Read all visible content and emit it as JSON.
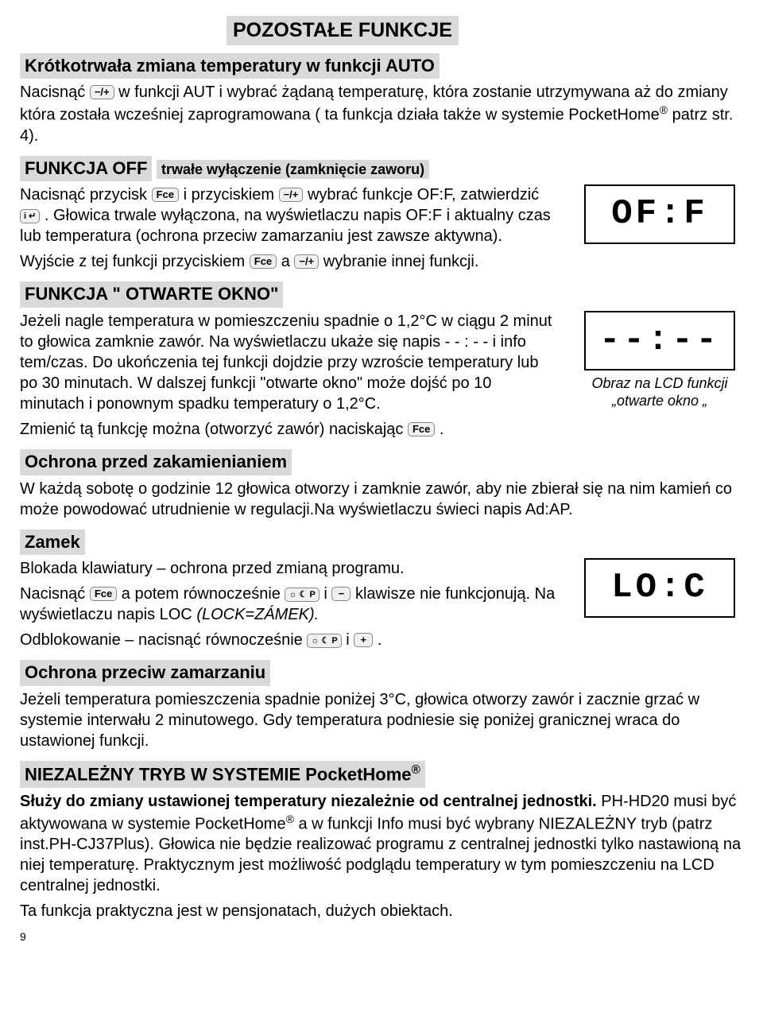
{
  "title": "POZOSTAŁE FUNKCJE",
  "sections": {
    "auto": {
      "heading": "Krótkotrwała zmiana temperatury w funkcji AUTO",
      "body_1a": "Nacisnąć ",
      "body_1b": " w funkcji AUT i wybrać żądaną temperaturę, która zostanie utrzymywana aż do zmiany która została wcześniej zaprogramowana ( ta funkcja działa także w systemie PocketHome",
      "body_1c": " patrz str. 4)."
    },
    "off": {
      "heading": "FUNKCJA OFF",
      "subheading": "trwałe wyłączenie (zamknięcie zaworu)",
      "p1a": "Nacisnąć przycisk ",
      "p1b": " i przyciskiem ",
      "p1c": " wybrać funkcje OF:F, zatwierdzić ",
      "p1d": ". Głowica  trwale wyłączona, na wyświetlaczu napis OF:F i aktualny czas lub temperatura (ochrona przeciw zamarzaniu jest zawsze aktywna).",
      "p2a": "Wyjście z tej funkcji przyciskiem ",
      "p2b": " a ",
      "p2c": " wybranie innej funkcji.",
      "lcd": "OF:F"
    },
    "openwindow": {
      "heading": "FUNKCJA \" OTWARTE OKNO\"",
      "p1": "Jeżeli nagle temperatura w pomieszczeniu spadnie o 1,2°C w ciągu 2 minut to głowica zamknie zawór. Na wyświetlaczu ukaże się napis  - - : - - i info tem/czas. Do ukończenia tej funkcji dojdzie przy wzroście temperatury lub po 30 minutach. W dalszej funkcji  \"otwarte okno\" może dojść po 10 minutach i ponownym spadku temperatury o 1,2°C.",
      "p2a": "Zmienić tą funkcję można (otworzyć zawór) naciskając ",
      "p2b": ".",
      "lcd": "--:--",
      "caption": "Obraz na LCD funkcji „otwarte okno „"
    },
    "anticalc": {
      "heading": "Ochrona przed zakamienianiem",
      "p1": "W każdą sobotę o godzinie 12 głowica otworzy i zamknie zawór, aby nie zbierał się na nim kamień co może powodować utrudnienie w regulacji.Na wyświetlaczu świeci napis  Ad:AP."
    },
    "lock": {
      "heading": "Zamek",
      "p1": "Blokada klawiatury – ochrona przed zmianą programu.",
      "p2a": "Nacisnąć ",
      "p2b": " a potem równocześnie ",
      "p2c": " i ",
      "p2d": " klawisze nie funkcjonują. Na wyświetlaczu napis LOC ",
      "p2e": "(LOCK=ZÁMEK).",
      "p3a": "Odblokowanie – nacisnąć równocześnie ",
      "p3b": " i ",
      "p3c": " .",
      "lcd": "LO:C"
    },
    "antifreeze": {
      "heading": "Ochrona przeciw zamarzaniu",
      "p1": "Jeżeli temperatura pomieszczenia spadnie poniżej 3°C, głowica otworzy zawór i zacznie grzać w systemie interwału 2 minutowego. Gdy temperatura podniesie się poniżej granicznej wraca do ustawionej funkcji."
    },
    "independent": {
      "heading_a": "NIEZALEŻNY TRYB W SYSTEMIE PocketHome",
      "p1_bold": "Służy do zmiany ustawionej temperatury niezależnie od centralnej jednostki.",
      "p1_rest_a": " PH-HD20 musi być aktywowana w systemie PocketHome",
      "p1_rest_b": " a w funkcji Info musi być wybrany NIEZALEŻNY tryb  (patrz inst.PH-CJ37Plus). Głowica nie będzie realizować programu z centralnej jednostki tylko nastawioną na niej temperaturę. Praktycznym jest możliwość podglądu temperatury w tym pomieszczeniu na LCD centralnej jednostki.",
      "p2": "Ta funkcja praktyczna jest w pensjonatach, dużych obiektach."
    }
  },
  "keys": {
    "plusminus": "−/+",
    "fce": "Fce",
    "ienter": "i ↵",
    "sunp": "☼ ☾ P",
    "minus": "−",
    "plus": "+"
  },
  "page_number": "9"
}
